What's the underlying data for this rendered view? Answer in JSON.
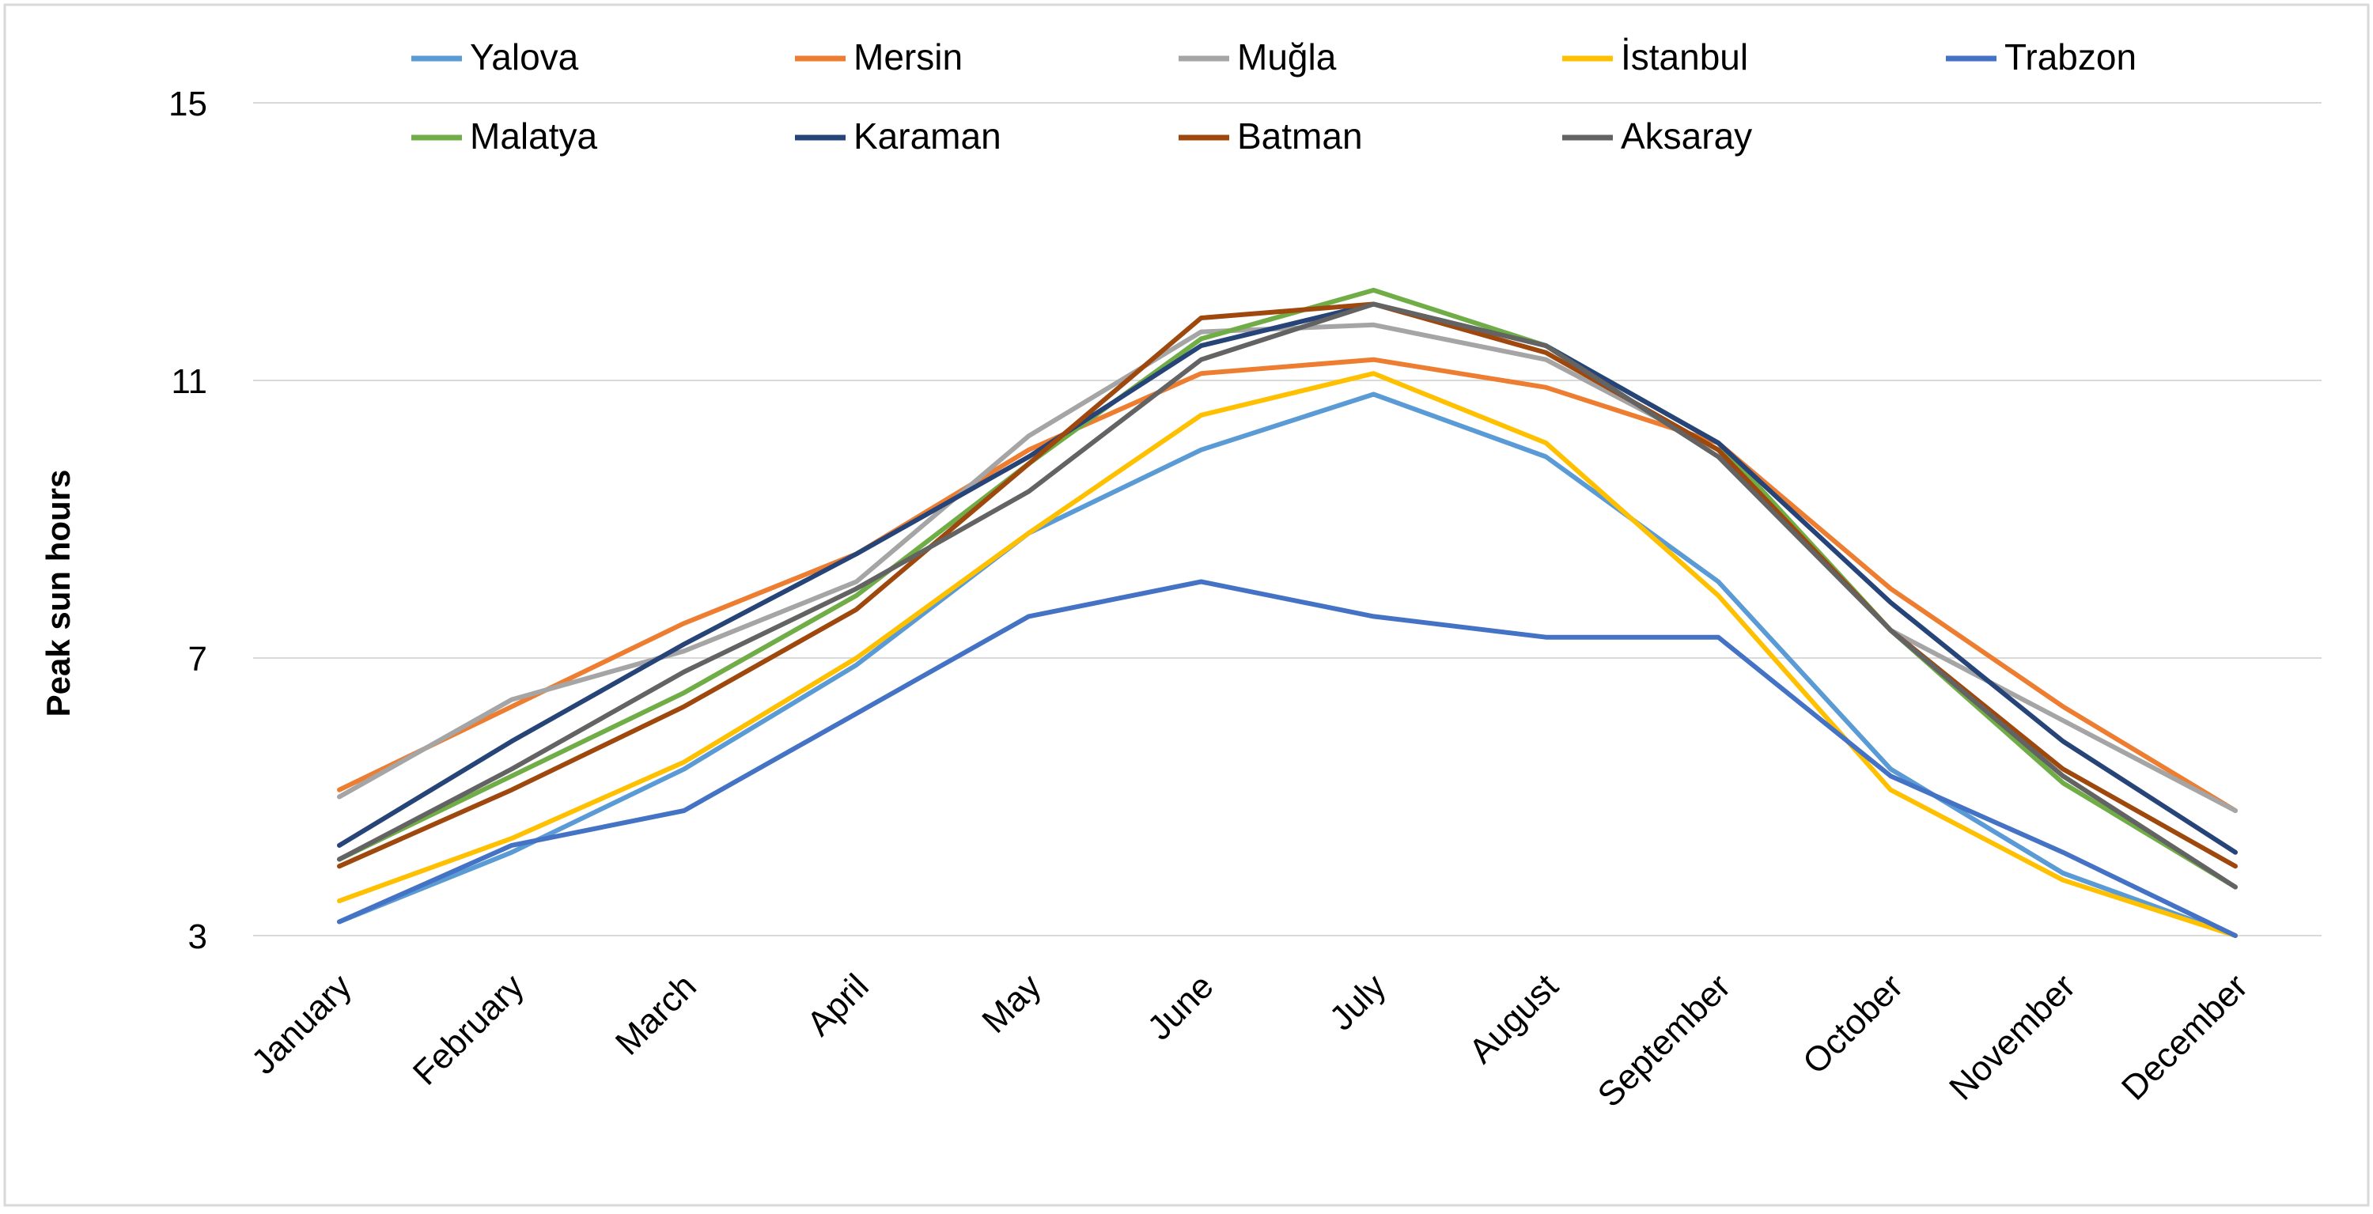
{
  "chart_data": {
    "type": "line",
    "title": "",
    "xlabel": "",
    "ylabel": "Peak sun hours",
    "ylim": [
      3,
      15
    ],
    "yticks": [
      3,
      7,
      11,
      15
    ],
    "grid": "horizontal",
    "legend_position": "top",
    "categories": [
      "January",
      "February",
      "March",
      "April",
      "May",
      "June",
      "July",
      "August",
      "September",
      "October",
      "November",
      "December"
    ],
    "series": [
      {
        "name": "Yalova",
        "color": "#5B9BD5",
        "values": [
          3.2,
          4.2,
          5.4,
          6.9,
          8.8,
          10.0,
          10.8,
          9.9,
          8.1,
          5.4,
          3.9,
          3.0
        ]
      },
      {
        "name": "Mersin",
        "color": "#ED7D31",
        "values": [
          5.1,
          6.3,
          7.5,
          8.5,
          10.0,
          11.1,
          11.3,
          10.9,
          10.1,
          8.0,
          6.3,
          4.8
        ]
      },
      {
        "name": "Muğla",
        "color": "#A5A5A5",
        "values": [
          5.0,
          6.4,
          7.1,
          8.1,
          10.2,
          11.7,
          11.8,
          11.3,
          10.0,
          7.4,
          6.1,
          4.8
        ]
      },
      {
        "name": "İstanbul",
        "color": "#FFC000",
        "values": [
          3.5,
          4.4,
          5.5,
          7.0,
          8.8,
          10.5,
          11.1,
          10.1,
          7.9,
          5.1,
          3.8,
          3.0
        ]
      },
      {
        "name": "Trabzon",
        "color": "#4472C4",
        "values": [
          3.2,
          4.3,
          4.8,
          6.2,
          7.6,
          8.1,
          7.6,
          7.3,
          7.3,
          5.3,
          4.2,
          3.0
        ]
      },
      {
        "name": "Malatya",
        "color": "#70AD47",
        "values": [
          4.1,
          5.3,
          6.5,
          7.9,
          9.8,
          11.6,
          12.3,
          11.5,
          10.1,
          7.4,
          5.2,
          3.7
        ]
      },
      {
        "name": "Karaman",
        "color": "#264478",
        "values": [
          4.3,
          5.8,
          7.2,
          8.5,
          9.9,
          11.5,
          12.1,
          11.5,
          10.1,
          7.8,
          5.8,
          4.2
        ]
      },
      {
        "name": "Batman",
        "color": "#9E480E",
        "values": [
          4.0,
          5.1,
          6.3,
          7.7,
          9.8,
          11.9,
          12.1,
          11.4,
          10.0,
          7.4,
          5.4,
          4.0
        ]
      },
      {
        "name": "Aksaray",
        "color": "#636363",
        "values": [
          4.1,
          5.4,
          6.8,
          8.0,
          9.4,
          11.3,
          12.1,
          11.5,
          9.9,
          7.4,
          5.3,
          3.7
        ]
      }
    ]
  }
}
